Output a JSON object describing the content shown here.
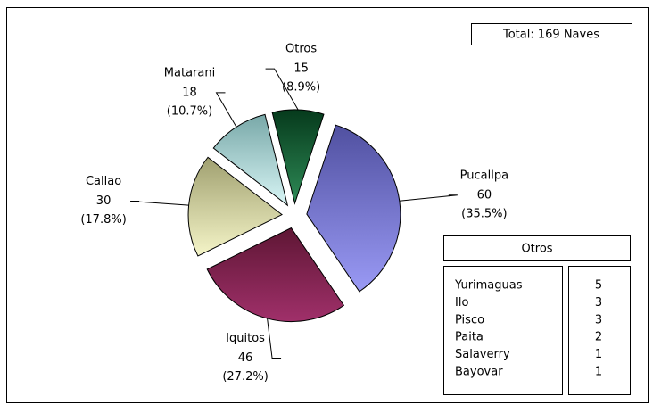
{
  "chart_data": {
    "type": "pie",
    "categories": [
      "Pucallpa",
      "Iquitos",
      "Callao",
      "Matarani",
      "Otros"
    ],
    "values": [
      60,
      46,
      30,
      18,
      15
    ],
    "percent_labels": [
      "(35.5%)",
      "(27.2%)",
      "(17.8%)",
      "(10.7%)",
      "(8.9%)"
    ],
    "colors": [
      [
        "#5050a0",
        "#9a9af5"
      ],
      [
        "#5e1634",
        "#a0306a"
      ],
      [
        "#a0a070",
        "#f5f5c8"
      ],
      [
        "#78a8a8",
        "#d8f5f5"
      ],
      [
        "#063a1c",
        "#2e8a56"
      ]
    ],
    "total_label": "Total: 169 Naves",
    "others_table": {
      "title": "Otros",
      "rows": [
        {
          "name": "Yurimaguas",
          "value": "5"
        },
        {
          "name": "Ilo",
          "value": "3"
        },
        {
          "name": "Pisco",
          "value": "3"
        },
        {
          "name": "Paita",
          "value": "2"
        },
        {
          "name": "Salaverry",
          "value": "1"
        },
        {
          "name": "Bayovar",
          "value": "1"
        }
      ]
    }
  }
}
